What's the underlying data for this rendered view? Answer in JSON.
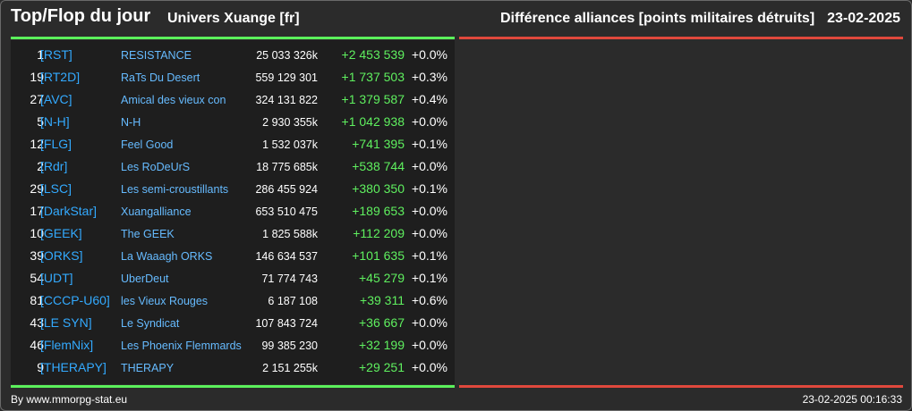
{
  "header": {
    "title": "Top/Flop du jour",
    "universe": "Univers Xuange [fr]",
    "metric": "Différence alliances [points militaires détruits]",
    "date": "23-02-2025"
  },
  "colors": {
    "background": "#2b2b2b",
    "table_background": "#1e1e1e",
    "top_accent": "#5bf05b",
    "flop_accent": "#e0483c",
    "tag_color": "#33aaff",
    "positive_diff": "#5ff05f"
  },
  "top_rows": [
    {
      "rank": "1",
      "tag": "[RST]",
      "name": "RESISTANCE",
      "points": "25 033 326k",
      "diff": "+2 453 539",
      "pct": "+0.0%"
    },
    {
      "rank": "19",
      "tag": "[RT2D]",
      "name": "RaTs Du Desert",
      "points": "559 129 301",
      "diff": "+1 737 503",
      "pct": "+0.3%"
    },
    {
      "rank": "27",
      "tag": "[AVC]",
      "name": "Amical des vieux con",
      "points": "324 131 822",
      "diff": "+1 379 587",
      "pct": "+0.4%"
    },
    {
      "rank": "5",
      "tag": "[N-H]",
      "name": "N-H",
      "points": "2 930 355k",
      "diff": "+1 042 938",
      "pct": "+0.0%"
    },
    {
      "rank": "12",
      "tag": "[FLG]",
      "name": "Feel Good",
      "points": "1 532 037k",
      "diff": "+741 395",
      "pct": "+0.1%"
    },
    {
      "rank": "2",
      "tag": "[Rdr]",
      "name": "Les RoDeUrS",
      "points": "18 775 685k",
      "diff": "+538 744",
      "pct": "+0.0%"
    },
    {
      "rank": "29",
      "tag": "[LSC]",
      "name": "Les semi-croustillants",
      "points": "286 455 924",
      "diff": "+380 350",
      "pct": "+0.1%"
    },
    {
      "rank": "17",
      "tag": "[DarkStar]",
      "name": "Xuangalliance",
      "points": "653 510 475",
      "diff": "+189 653",
      "pct": "+0.0%"
    },
    {
      "rank": "10",
      "tag": "[GEEK]",
      "name": "The GEEK",
      "points": "1 825 588k",
      "diff": "+112 209",
      "pct": "+0.0%"
    },
    {
      "rank": "39",
      "tag": "[ORKS]",
      "name": "La Waaagh ORKS",
      "points": "146 634 537",
      "diff": "+101 635",
      "pct": "+0.1%"
    },
    {
      "rank": "54",
      "tag": "[UDT]",
      "name": "UberDeut",
      "points": "71 774 743",
      "diff": "+45 279",
      "pct": "+0.1%"
    },
    {
      "rank": "81",
      "tag": "[CCCP-U60]",
      "name": "les Vieux Rouges",
      "points": "6 187 108",
      "diff": "+39 311",
      "pct": "+0.6%"
    },
    {
      "rank": "43",
      "tag": "[LE SYN]",
      "name": "Le Syndicat",
      "points": "107 843 724",
      "diff": "+36 667",
      "pct": "+0.0%"
    },
    {
      "rank": "46",
      "tag": "[FlemNix]",
      "name": "Les Phoenix Flemmards",
      "points": "99 385 230",
      "diff": "+32 199",
      "pct": "+0.0%"
    },
    {
      "rank": "9",
      "tag": "[THERAPY]",
      "name": "THERAPY",
      "points": "2 151 255k",
      "diff": "+29 251",
      "pct": "+0.0%"
    }
  ],
  "footer": {
    "credit": "By www.mmorpg-stat.eu",
    "timestamp": "23-02-2025 00:16:33"
  }
}
